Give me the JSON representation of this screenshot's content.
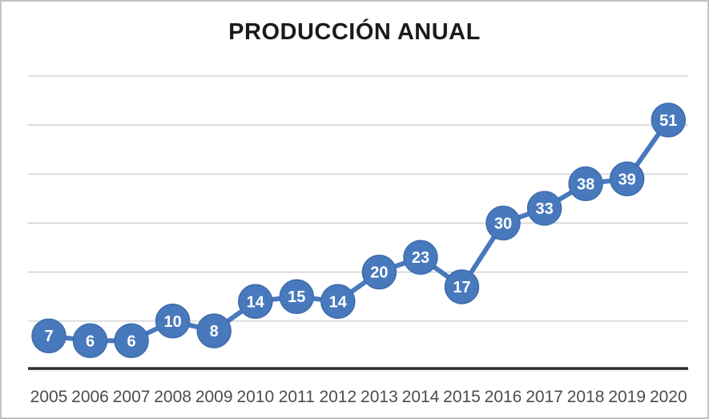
{
  "chart_data": {
    "type": "line",
    "title": "PRODUCCIÓN ANUAL",
    "categories": [
      "2005",
      "2006",
      "2007",
      "2008",
      "2009",
      "2010",
      "2011",
      "2012",
      "2013",
      "2014",
      "2015",
      "2016",
      "2017",
      "2018",
      "2019",
      "2020"
    ],
    "series": [
      {
        "name": "Producción anual",
        "values": [
          7,
          6,
          6,
          10,
          8,
          14,
          15,
          14,
          20,
          23,
          17,
          30,
          33,
          38,
          39,
          51
        ]
      }
    ],
    "xlabel": "",
    "ylabel": "",
    "ylim": [
      0,
      65
    ],
    "gridline_step": 10,
    "grid": "horizontal",
    "legend_position": "none",
    "marker_style": "circle-with-value-label",
    "colors": {
      "marker_fill": "#4879bd",
      "marker_stroke": "#3e6cab",
      "line": "#4879bd",
      "value_label": "#ffffff",
      "gridline": "#c7c7c7",
      "axis": "#2d2d2d",
      "tick_label": "#4d4d4d",
      "title": "#1b1b1b",
      "background": "#ffffff"
    }
  }
}
